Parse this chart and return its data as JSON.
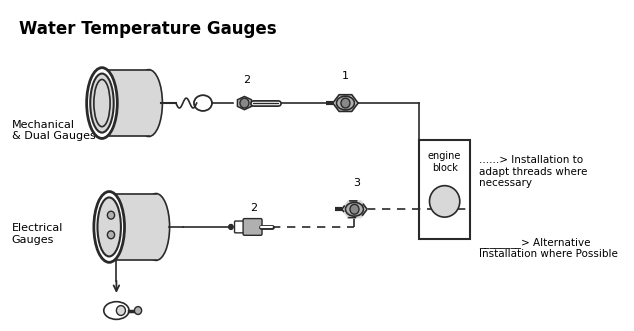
{
  "title": "Water Temperature Gauges",
  "bg_color": "#ffffff",
  "line_color": "#2a2a2a",
  "gray_fill": "#b0b0b0",
  "light_gray": "#d8d8d8",
  "dark_gray": "#888888",
  "label_mech": "Mechanical\n& Dual Gauges",
  "label_elec": "Electrical\nGauges",
  "note1": "......> Installation to\nadapt threads where\nnecessary",
  "note2": "________> Alternative\nInstallation where Possible",
  "engine_block_label": "engine\nblock",
  "num1": "1",
  "num2_top": "2",
  "num3": "3",
  "num2_bot": "2"
}
